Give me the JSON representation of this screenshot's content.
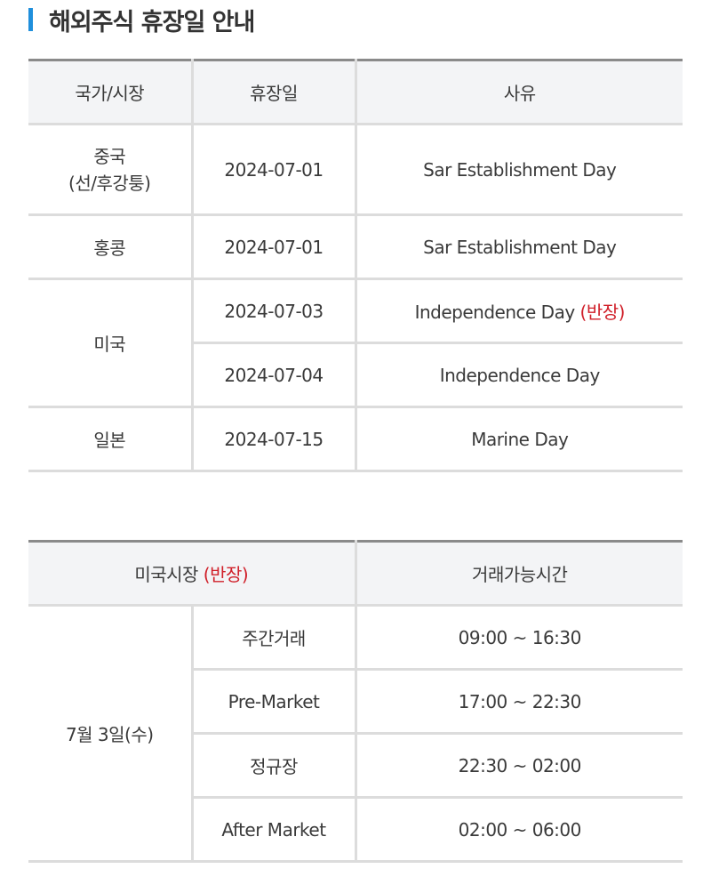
{
  "title": "해외주식 휴장일 안내",
  "accent_color": "#1f8fdc",
  "highlight_color": "#d0202a",
  "holidays": {
    "headers": [
      "국가/시장",
      "휴장일",
      "사유"
    ],
    "rows": [
      {
        "country_line1": "중국",
        "country_line2": "(선/후강퉁)",
        "date": "2024-07-01",
        "reason": "Sar Establishment Day"
      },
      {
        "country": "홍콩",
        "date": "2024-07-01",
        "reason": "Sar Establishment Day"
      },
      {
        "country": "미국",
        "date": "2024-07-03",
        "reason": "Independence Day",
        "note": "(반장)"
      },
      {
        "date": "2024-07-04",
        "reason": "Independence Day"
      },
      {
        "country": "일본",
        "date": "2024-07-15",
        "reason": "Marine Day"
      }
    ]
  },
  "us_halfday": {
    "header_market": "미국시장",
    "header_note": "(반장)",
    "header_hours": "거래가능시간",
    "date": "7월 3일(수)",
    "sessions": [
      {
        "name": "주간거래",
        "hours": "09:00 ~ 16:30"
      },
      {
        "name": "Pre-Market",
        "hours": "17:00 ~ 22:30"
      },
      {
        "name": "정규장",
        "hours": "22:30 ~ 02:00"
      },
      {
        "name": "After Market",
        "hours": "02:00 ~ 06:00"
      }
    ]
  }
}
